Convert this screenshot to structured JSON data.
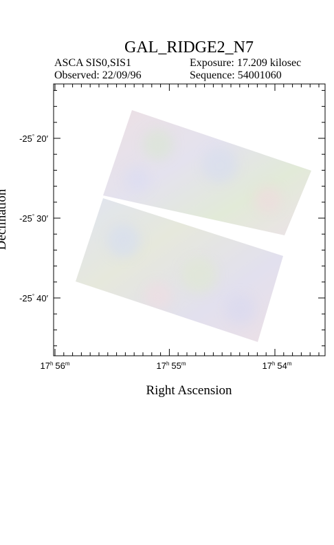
{
  "header": {
    "title": "GAL_RIDGE2_N7",
    "instrument": "ASCA SIS0,SIS1",
    "exposure": "Exposure: 17.209 kilosec",
    "observed": "Observed: 22/09/96",
    "sequence": "Sequence: 54001060"
  },
  "axes": {
    "x_label": "Right Ascension",
    "y_label": "Declination",
    "x_ticks": [
      {
        "hours": "17",
        "hour_unit": "h",
        "minutes": "56",
        "minute_unit": "m"
      },
      {
        "hours": "17",
        "hour_unit": "h",
        "minutes": "55",
        "minute_unit": "m"
      },
      {
        "hours": "17",
        "hour_unit": "h",
        "minutes": "54",
        "minute_unit": "m"
      }
    ],
    "y_ticks": [
      {
        "degrees": "-25",
        "degree_sign": "°",
        "minutes": "20",
        "minute_sign": "′"
      },
      {
        "degrees": "-25",
        "degree_sign": "°",
        "minutes": "30",
        "minute_sign": "′"
      },
      {
        "degrees": "-25",
        "degree_sign": "°",
        "minutes": "40",
        "minute_sign": "′"
      }
    ]
  }
}
